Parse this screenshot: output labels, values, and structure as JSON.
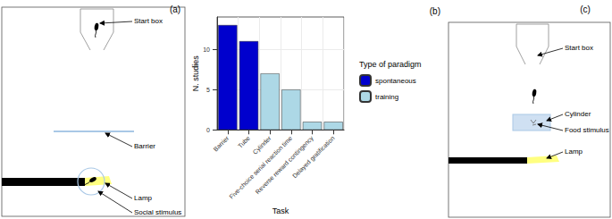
{
  "chart_data": {
    "type": "bar",
    "title": "(b)",
    "x_label": "Task",
    "y_label": "N. studies",
    "categories": [
      "Barrier",
      "Tube",
      "Cylinder",
      "Five-choice serial reaction time",
      "Reverse reward contingency",
      "Delayed gratification"
    ],
    "series": [
      {
        "name": "spontaneous",
        "color": "#0000cd",
        "values": [
          13,
          11,
          null,
          null,
          null,
          null
        ]
      },
      {
        "name": "training",
        "color": "#add8e6",
        "values": [
          null,
          null,
          7,
          5,
          1,
          1
        ]
      }
    ],
    "stacked": true,
    "ylim": [
      0,
      14
    ],
    "yticks": [
      0,
      5,
      10
    ],
    "grid": true,
    "legend": "right",
    "legend_title": "Type of paradigm"
  },
  "diagram_a": {
    "label": "(a)",
    "parts": {
      "start_box": "Start box",
      "barrier": "Barrier",
      "lamp": "Lamp",
      "social_stimulus": "Social stimulus"
    }
  },
  "diagram_c": {
    "label": "(c)",
    "parts": {
      "start_box": "Start box",
      "cylinder": "Cylinder",
      "food_stimulus": "Food stimulus",
      "lamp": "Lamp"
    }
  }
}
